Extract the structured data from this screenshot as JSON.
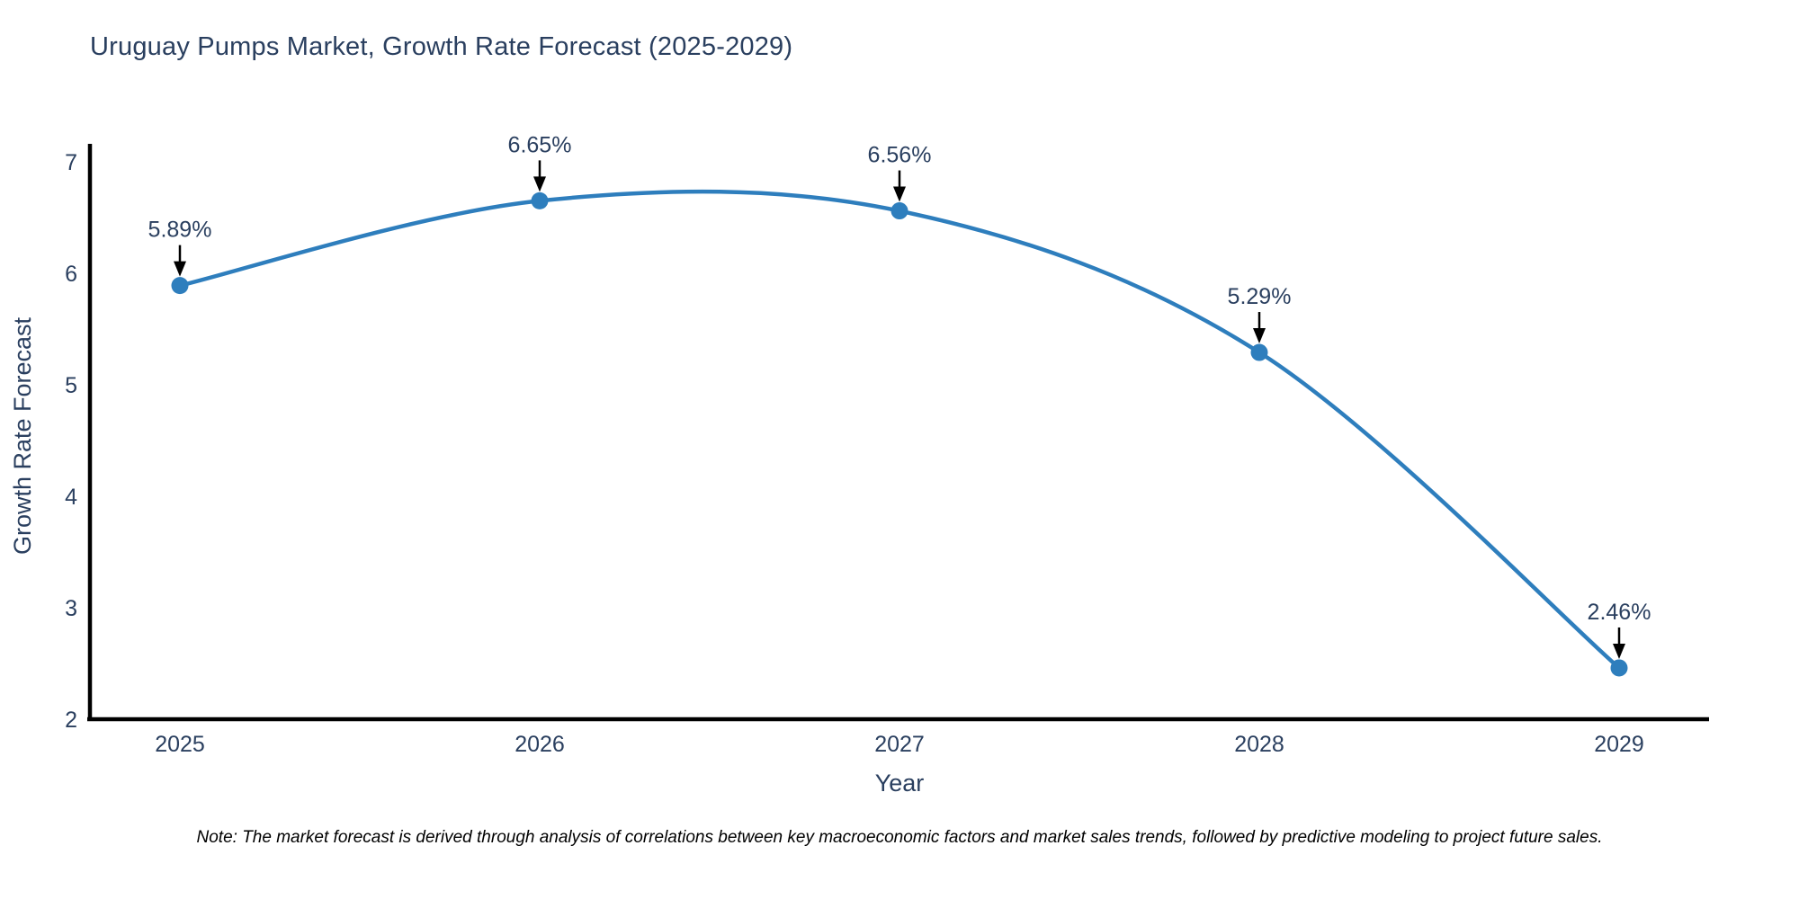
{
  "chart_data": {
    "type": "line",
    "title": "Uruguay Pumps Market, Growth Rate Forecast (2025-2029)",
    "xlabel": "Year",
    "ylabel": "Growth Rate Forecast",
    "x": [
      2025,
      2026,
      2027,
      2028,
      2029
    ],
    "series": [
      {
        "name": "Growth Rate Forecast",
        "values": [
          5.89,
          6.65,
          6.56,
          5.29,
          2.46
        ],
        "point_labels": [
          "5.89%",
          "6.65%",
          "6.56%",
          "5.29%",
          "2.46%"
        ]
      }
    ],
    "ylim": [
      2,
      7
    ],
    "yticks": [
      2,
      3,
      4,
      5,
      6,
      7
    ],
    "line_shape": "spline",
    "grid": false,
    "legend": "none",
    "annotation_style": "label-with-down-arrow",
    "colors": {
      "line": "#2e7ebd",
      "marker": "#2e7ebd",
      "axis": "#000000",
      "text": "#2a3f5f",
      "annotation_text": "#2a3f5f",
      "arrow": "#000000",
      "note": "#000000",
      "background": "#ffffff"
    },
    "note": "Note: The market forecast is derived through analysis of correlations between key macroeconomic factors and market sales trends, followed by predictive modeling to project future sales."
  }
}
